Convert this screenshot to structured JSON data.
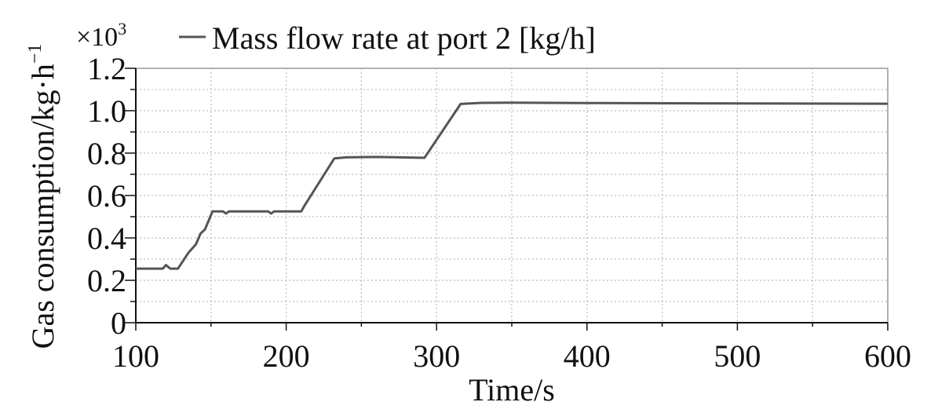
{
  "chart_data": {
    "type": "line",
    "y_label": "Gas consumption/kg·h",
    "y_label_exp": "−1",
    "x_label": "Time/s",
    "y_multiplier": "×10",
    "y_multiplier_exp": "3",
    "x": [
      100,
      118,
      120,
      123,
      128,
      135,
      140,
      143,
      146,
      151,
      158,
      160,
      162,
      188,
      190,
      192,
      210,
      212,
      232,
      240,
      260,
      292,
      316,
      330,
      350,
      400,
      600
    ],
    "series": [
      {
        "name": "Mass flow rate at port 2 [kg/h]",
        "color": "#555555",
        "values": [
          0.255,
          0.255,
          0.272,
          0.255,
          0.255,
          0.33,
          0.37,
          0.42,
          0.44,
          0.525,
          0.525,
          0.515,
          0.525,
          0.525,
          0.515,
          0.525,
          0.525,
          0.55,
          0.775,
          0.78,
          0.782,
          0.778,
          1.032,
          1.037,
          1.038,
          1.036,
          1.033
        ]
      }
    ],
    "xlim": [
      100,
      600
    ],
    "xticks": [
      100,
      200,
      300,
      400,
      500,
      600
    ],
    "x_minor_ticks": [
      150,
      250,
      350,
      450,
      550
    ],
    "ylim": [
      0,
      1.2
    ],
    "yticks": [
      0,
      0.2,
      0.4,
      0.6,
      0.8,
      {
        "value": 1,
        "label": "1.0"
      },
      1.2
    ],
    "y_minor_ticks": [
      0.1,
      0.3,
      0.5,
      0.7,
      0.9,
      1.1
    ],
    "grid": true,
    "legend": "top"
  }
}
